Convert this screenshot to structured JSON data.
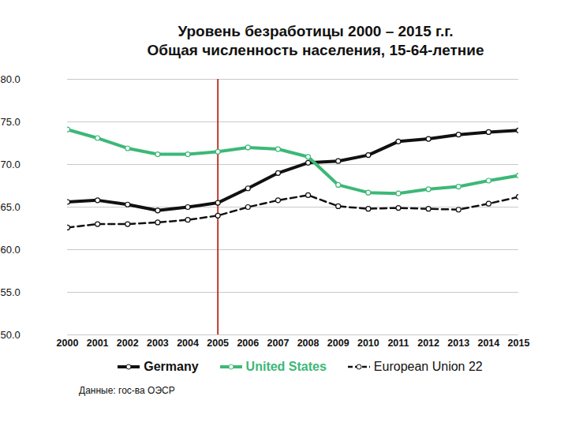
{
  "chart_data": {
    "type": "line",
    "title": "Уровень безработицы 2000 – 2015 г.г.",
    "subtitle": "Общая численность населения, 15-64-летние",
    "caption": "Данные: гос-ва ОЭСР",
    "x": [
      2000,
      2001,
      2002,
      2003,
      2004,
      2005,
      2006,
      2007,
      2008,
      2009,
      2010,
      2011,
      2012,
      2013,
      2014,
      2015
    ],
    "xlim": [
      2000,
      2015
    ],
    "xticks": [
      2000,
      2001,
      2002,
      2003,
      2004,
      2005,
      2006,
      2007,
      2008,
      2009,
      2010,
      2011,
      2012,
      2013,
      2014,
      2015
    ],
    "ylim": [
      50,
      80
    ],
    "yticks": [
      {
        "value": 50,
        "label": "50.0"
      },
      {
        "value": 55,
        "label": "55.0"
      },
      {
        "value": 60,
        "label": "60.0"
      },
      {
        "value": 65,
        "label": "65.0"
      },
      {
        "value": 70,
        "label": "70.0"
      },
      {
        "value": 75,
        "label": "75.0"
      },
      {
        "value": 80,
        "label": "80.0"
      }
    ],
    "grid": true,
    "legend": "bottom",
    "reference_line": {
      "x": 2005,
      "color": "#c0392b"
    },
    "series": [
      {
        "name": "Germany",
        "color": "#111111",
        "marker": "circle",
        "line_style": "solid",
        "values": [
          65.6,
          65.8,
          65.3,
          64.6,
          65.0,
          65.5,
          67.2,
          69.0,
          70.2,
          70.4,
          71.1,
          72.7,
          73.0,
          73.5,
          73.8,
          74.0
        ]
      },
      {
        "name": "United States",
        "color": "#3cb878",
        "marker": "circle",
        "line_style": "solid",
        "values": [
          74.1,
          73.1,
          71.9,
          71.2,
          71.2,
          71.5,
          72.0,
          71.8,
          70.9,
          67.6,
          66.7,
          66.6,
          67.1,
          67.4,
          68.1,
          68.7
        ]
      },
      {
        "name": "European Union 22",
        "color": "#111111",
        "marker": "circle",
        "line_style": "dashed",
        "values": [
          62.6,
          63.0,
          63.0,
          63.2,
          63.5,
          64.0,
          65.0,
          65.8,
          66.4,
          65.1,
          64.8,
          64.9,
          64.8,
          64.7,
          65.4,
          66.2
        ]
      }
    ]
  }
}
